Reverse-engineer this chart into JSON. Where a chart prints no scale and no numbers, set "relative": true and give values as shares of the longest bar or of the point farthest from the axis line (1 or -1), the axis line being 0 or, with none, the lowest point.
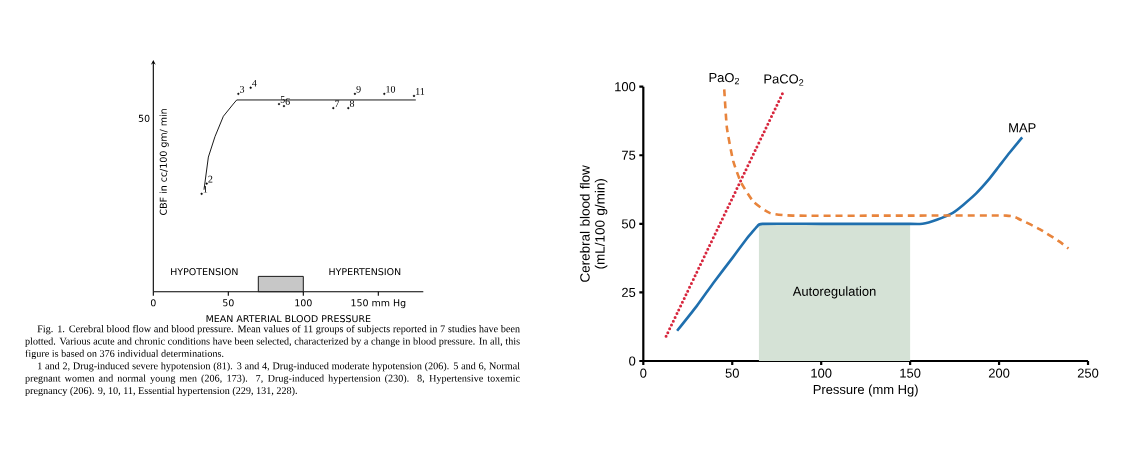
{
  "chart_data": [
    {
      "type": "line",
      "xlabel": "MEAN ARTERIAL BLOOD PRESSURE",
      "ylabel": "CBF in cc/100 gm/ min",
      "relative": true,
      "xlim": [
        0,
        180
      ],
      "xticks": [
        0,
        50,
        100,
        {
          "value": 150,
          "label": "150 mm Hg"
        }
      ],
      "series": [
        {
          "color": "#000000",
          "x": [
            33.8,
            36.7,
            41.1,
            46.7,
            53.3,
            55.6,
            175
          ],
          "values": [
            0.5,
            0.66,
            0.76,
            0.86,
            0.92,
            0.94,
            0.94
          ]
        },
        {
          "type": "scatter",
          "color": "#000000",
          "marker": "circle",
          "x": [
            32.2,
            35.6,
            56.7,
            64.9,
            83.8,
            87.1,
            120,
            130,
            134.4,
            154,
            173.8
          ],
          "values": [
            0.48,
            0.53,
            0.97,
            1.0,
            0.92,
            0.91,
            0.9,
            0.9,
            0.97,
            0.97,
            0.96
          ]
        }
      ],
      "bands": [
        {
          "axis": "x",
          "from": 70,
          "to": 100
        }
      ],
      "annotations": [
        {
          "text": "1",
          "x": 32.2,
          "y": 0.48
        },
        {
          "text": "2",
          "x": 35.6,
          "y": 0.53
        },
        {
          "text": "3",
          "x": 56.7,
          "y": 0.97
        },
        {
          "text": "4",
          "x": 64.9,
          "y": 1.0
        },
        {
          "text": "5",
          "x": 83.8,
          "y": 0.92
        },
        {
          "text": "6",
          "x": 87.1,
          "y": 0.91
        },
        {
          "text": "7",
          "x": 120,
          "y": 0.9
        },
        {
          "text": "8",
          "x": 130,
          "y": 0.9
        },
        {
          "text": "9",
          "x": 134.4,
          "y": 0.97
        },
        {
          "text": "10",
          "x": 154,
          "y": 0.97
        },
        {
          "text": "11",
          "x": 173.8,
          "y": 0.96
        },
        "50",
        "HYPOTENSION",
        "HYPERTENSION",
        "Fig. 1. Cerebral blood flow and blood pressure. Mean values of 11 groups of subjects reported in 7 studies have been plotted. Various acute and chronic conditions have been selected, characterized by a change in blood pressure. In all, this figure is based on 376 individual determinations.",
        "1 and 2, Drug-induced severe hypotension (81).    3 and 4, Drug-induced moderate hypotension (206).    5 and 6, Normal pregnant women and normal young men (206, 173). 7, Drug-induced hypertension (230).    8, Hypertensive toxemic pregnancy (206).    9, 10, 11, Essential hypertension (229, 131, 228)."
      ]
    },
    {
      "type": "line",
      "xlabel": "Pressure (mm Hg)",
      "ylabel": "Cerebral blood flow (mL/100 g/min)",
      "xlim": [
        0,
        250
      ],
      "ylim": [
        0,
        100
      ],
      "xticks": [
        0,
        50,
        100,
        150,
        200,
        250
      ],
      "yticks": [
        0,
        25,
        50,
        75,
        100
      ],
      "series": [
        {
          "type": "area",
          "name": "Autoregulation",
          "color": "#d5e2d6",
          "x": [
            65,
            150
          ],
          "values": [
            50,
            50
          ]
        },
        {
          "name": "MAP",
          "color": "#1f6fae",
          "line_style": "solid",
          "x": [
            19,
            30,
            40,
            50,
            58,
            61,
            64,
            67,
            100,
            150,
            157,
            165,
            174,
            180,
            187,
            194,
            200,
            206,
            213
          ],
          "values": [
            11,
            20,
            29,
            37.5,
            44.5,
            46.8,
            49,
            50,
            50,
            50,
            50,
            51.5,
            54,
            57,
            61,
            66,
            71,
            76,
            81.5
          ]
        },
        {
          "name": "PaO$_{2}$",
          "color": "#e8843c",
          "line_style": "dashed",
          "x": [
            45.5,
            47,
            50.5,
            55,
            62,
            71,
            84,
            150,
            204,
            212,
            223,
            234,
            239
          ],
          "values": [
            99,
            85,
            73,
            65,
            58,
            54,
            53,
            53,
            53,
            51.5,
            48,
            43.5,
            41
          ]
        },
        {
          "name": "PaCO$_{2}$",
          "color": "#d7263d",
          "line_style": "dotted",
          "x": [
            12.8,
            79
          ],
          "values": [
            9,
            98.5
          ]
        }
      ]
    }
  ]
}
